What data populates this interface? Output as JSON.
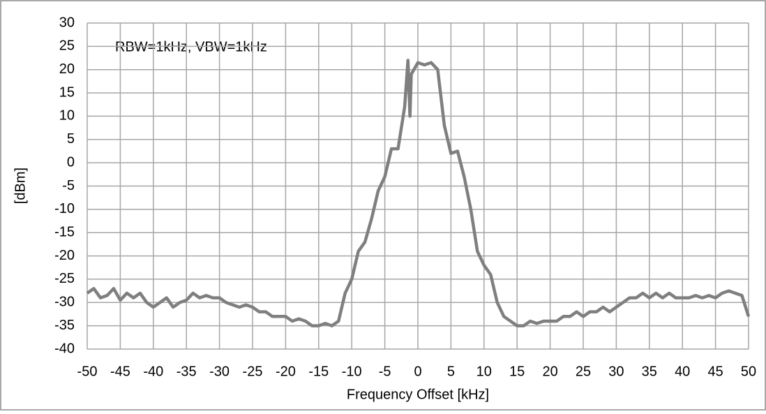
{
  "chart_data": {
    "type": "line",
    "annotation": "RBW=1kHz, VBW=1kHz",
    "xlabel": "Frequency Offset [kHz]",
    "ylabel": "[dBm]",
    "x": [
      -50,
      -49,
      -48,
      -47,
      -46,
      -45,
      -44,
      -43,
      -42,
      -41,
      -40,
      -39,
      -38,
      -37,
      -36,
      -35,
      -34,
      -33,
      -32,
      -31,
      -30,
      -29,
      -28,
      -27,
      -26,
      -25,
      -24,
      -23,
      -22,
      -21,
      -20,
      -19,
      -18,
      -17,
      -16,
      -15,
      -14,
      -13,
      -12,
      -11,
      -10,
      -9,
      -8,
      -7,
      -6,
      -5,
      -4,
      -3,
      -2,
      -1.5,
      -1.2,
      -1,
      0,
      1,
      2,
      3,
      4,
      5,
      6,
      7,
      8,
      9,
      10,
      11,
      12,
      13,
      14,
      15,
      16,
      17,
      18,
      19,
      20,
      21,
      22,
      23,
      24,
      25,
      26,
      27,
      28,
      29,
      30,
      31,
      32,
      33,
      34,
      35,
      36,
      37,
      38,
      39,
      40,
      41,
      42,
      43,
      44,
      45,
      46,
      47,
      48,
      49,
      50
    ],
    "values": [
      -28,
      -27,
      -29,
      -28.5,
      -27,
      -29.5,
      -28,
      -29,
      -28,
      -30,
      -31,
      -30,
      -29,
      -31,
      -30,
      -29.5,
      -28,
      -29,
      -28.5,
      -29,
      -29,
      -30,
      -30.5,
      -31,
      -30.5,
      -31,
      -32,
      -32,
      -33,
      -33,
      -33,
      -34,
      -33.5,
      -34,
      -35,
      -35,
      -34.5,
      -35,
      -34,
      -28,
      -25,
      -19,
      -17,
      -12,
      -6,
      -3,
      3,
      3,
      12,
      22,
      10,
      19,
      21.5,
      21,
      21.5,
      20,
      8,
      2,
      2.5,
      -3,
      -10,
      -19,
      -22,
      -24,
      -30,
      -33,
      -34,
      -35,
      -35,
      -34,
      -34.5,
      -34,
      -34,
      -34,
      -33,
      -33,
      -32,
      -33,
      -32,
      -32,
      -31,
      -32,
      -31,
      -30,
      -29,
      -29,
      -28,
      -29,
      -28,
      -29,
      -28,
      -29,
      -29,
      -29,
      -28.5,
      -29,
      -28.5,
      -29,
      -28,
      -27.5,
      -28,
      -28.5,
      -33
    ],
    "color": "#7f7f7f",
    "xlim": [
      -50,
      50
    ],
    "xticks": [
      -50,
      -45,
      -40,
      -35,
      -30,
      -25,
      -20,
      -15,
      -10,
      -5,
      0,
      5,
      10,
      15,
      20,
      25,
      30,
      35,
      40,
      45,
      50
    ],
    "ylim": [
      -40,
      30
    ],
    "yticks": [
      -40,
      -35,
      -30,
      -25,
      -20,
      -15,
      -10,
      -5,
      0,
      5,
      10,
      15,
      20,
      25,
      30
    ],
    "grid": true
  }
}
